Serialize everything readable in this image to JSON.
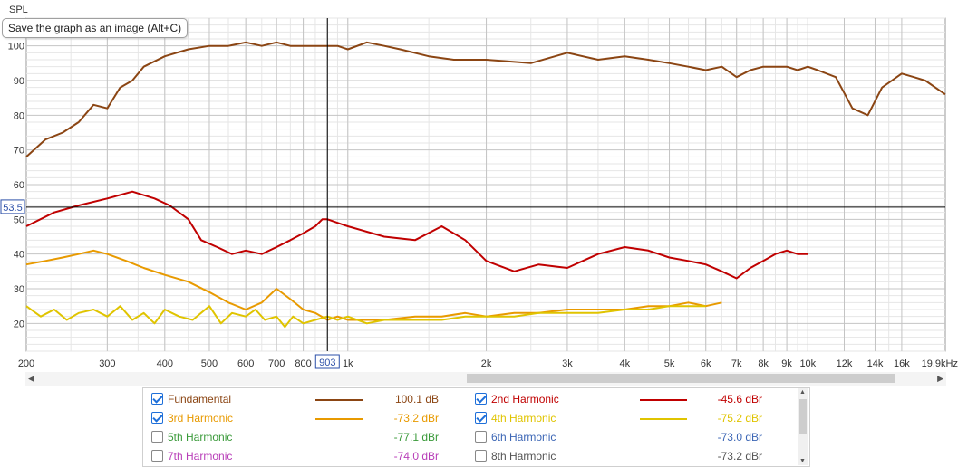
{
  "tooltip": "Save the graph as an image (Alt+C)",
  "chart_data": {
    "type": "line",
    "ylabel": "SPL",
    "xscale": "log",
    "xlim": [
      200,
      19900
    ],
    "ylim": [
      12,
      108
    ],
    "grid": true,
    "x_ticks": [
      {
        "v": 200,
        "label": "200"
      },
      {
        "v": 300,
        "label": "300"
      },
      {
        "v": 400,
        "label": "400"
      },
      {
        "v": 500,
        "label": "500"
      },
      {
        "v": 600,
        "label": "600"
      },
      {
        "v": 700,
        "label": "700"
      },
      {
        "v": 800,
        "label": "800"
      },
      {
        "v": 1000,
        "label": "1k"
      },
      {
        "v": 2000,
        "label": "2k"
      },
      {
        "v": 3000,
        "label": "3k"
      },
      {
        "v": 4000,
        "label": "4k"
      },
      {
        "v": 5000,
        "label": "5k"
      },
      {
        "v": 6000,
        "label": "6k"
      },
      {
        "v": 7000,
        "label": "7k"
      },
      {
        "v": 8000,
        "label": "8k"
      },
      {
        "v": 9000,
        "label": "9k"
      },
      {
        "v": 10000,
        "label": "10k"
      },
      {
        "v": 12000,
        "label": "12k"
      },
      {
        "v": 14000,
        "label": "14k"
      },
      {
        "v": 16000,
        "label": "16k"
      },
      {
        "v": 19900,
        "label": "19.9kHz"
      }
    ],
    "y_ticks": [
      20,
      30,
      40,
      50,
      60,
      70,
      80,
      90,
      100
    ],
    "cursor": {
      "x": 903,
      "y": 53.5,
      "x_label": "903",
      "y_label": "53.5"
    },
    "series": [
      {
        "name": "Fundamental",
        "color": "#8b4513",
        "x": [
          200,
          220,
          240,
          260,
          280,
          300,
          320,
          340,
          360,
          400,
          450,
          500,
          550,
          600,
          650,
          700,
          750,
          800,
          850,
          903,
          950,
          1000,
          1100,
          1200,
          1300,
          1500,
          1700,
          2000,
          2500,
          3000,
          3500,
          4000,
          4500,
          5000,
          5500,
          6000,
          6500,
          7000,
          7500,
          8000,
          9000,
          9500,
          10000,
          10500,
          11500,
          12500,
          13500,
          14500,
          16000,
          17000,
          18000,
          19900
        ],
        "y": [
          68,
          73,
          75,
          78,
          83,
          82,
          88,
          90,
          94,
          97,
          99,
          100,
          100,
          101,
          100,
          101,
          100,
          100,
          100,
          100,
          100,
          99,
          101,
          100,
          99,
          97,
          96,
          96,
          95,
          98,
          96,
          97,
          96,
          95,
          94,
          93,
          94,
          91,
          93,
          94,
          94,
          93,
          94,
          93,
          91,
          82,
          80,
          88,
          92,
          91,
          90,
          86
        ]
      },
      {
        "name": "2nd Harmonic",
        "color": "#c00000",
        "x": [
          200,
          230,
          260,
          300,
          340,
          380,
          410,
          450,
          480,
          520,
          560,
          600,
          650,
          700,
          750,
          800,
          850,
          880,
          903,
          950,
          1000,
          1200,
          1400,
          1600,
          1800,
          2000,
          2300,
          2600,
          3000,
          3500,
          4000,
          4500,
          5000,
          5500,
          6000,
          6500,
          7000,
          7500,
          8000,
          8500,
          9000,
          9500,
          10000
        ],
        "y": [
          48,
          52,
          54,
          56,
          58,
          56,
          54,
          50,
          44,
          42,
          40,
          41,
          40,
          42,
          44,
          46,
          48,
          50,
          50,
          49,
          48,
          45,
          44,
          48,
          44,
          38,
          35,
          37,
          36,
          40,
          42,
          41,
          39,
          38,
          37,
          35,
          33,
          36,
          38,
          40,
          41,
          40,
          40
        ]
      },
      {
        "name": "3rd Harmonic",
        "color": "#e89a00",
        "x": [
          200,
          220,
          240,
          260,
          280,
          300,
          330,
          360,
          400,
          450,
          500,
          550,
          600,
          650,
          700,
          750,
          800,
          850,
          903,
          950,
          1000,
          1100,
          1200,
          1400,
          1600,
          1800,
          2000,
          2300,
          2600,
          3000,
          3500,
          4000,
          4500,
          5000,
          5500,
          6000,
          6500
        ],
        "y": [
          37,
          38,
          39,
          40,
          41,
          40,
          38,
          36,
          34,
          32,
          29,
          26,
          24,
          26,
          30,
          27,
          24,
          23,
          21,
          22,
          21,
          21,
          21,
          22,
          22,
          23,
          22,
          23,
          23,
          24,
          24,
          24,
          25,
          25,
          26,
          25,
          26
        ]
      },
      {
        "name": "4th Harmonic",
        "color": "#e0c400",
        "x": [
          200,
          215,
          230,
          245,
          260,
          280,
          300,
          320,
          340,
          360,
          380,
          400,
          430,
          460,
          500,
          530,
          560,
          600,
          630,
          660,
          700,
          730,
          760,
          800,
          850,
          903,
          950,
          1000,
          1100,
          1200,
          1400,
          1600,
          1800,
          2000,
          2300,
          2600,
          3000,
          3500,
          4000,
          4500,
          5000,
          5500,
          6000
        ],
        "y": [
          25,
          22,
          24,
          21,
          23,
          24,
          22,
          25,
          21,
          23,
          20,
          24,
          22,
          21,
          25,
          20,
          23,
          22,
          24,
          21,
          22,
          19,
          22,
          20,
          21,
          22,
          21,
          22,
          20,
          21,
          21,
          21,
          22,
          22,
          22,
          23,
          23,
          23,
          24,
          24,
          25,
          25,
          25
        ]
      }
    ]
  },
  "legend": {
    "rows": [
      [
        {
          "label": "Fundamental",
          "color": "#8b4513",
          "checked": true,
          "value": "100.1 dB"
        },
        {
          "label": "2nd Harmonic",
          "color": "#c00000",
          "checked": true,
          "value": "-45.6 dBr"
        }
      ],
      [
        {
          "label": "3rd Harmonic",
          "color": "#e89a00",
          "checked": true,
          "value": "-73.2 dBr"
        },
        {
          "label": "4th Harmonic",
          "color": "#e0c400",
          "checked": true,
          "value": "-75.2 dBr"
        }
      ],
      [
        {
          "label": "5th Harmonic",
          "color": "#3a9a3a",
          "checked": false,
          "value": "-77.1 dBr"
        },
        {
          "label": "6th Harmonic",
          "color": "#3c66b5",
          "checked": false,
          "value": "-73.0 dBr"
        }
      ],
      [
        {
          "label": "7th Harmonic",
          "color": "#b83db8",
          "checked": false,
          "value": "-74.0 dBr"
        },
        {
          "label": "8th Harmonic",
          "color": "#555555",
          "checked": false,
          "value": "-73.2 dBr"
        }
      ]
    ]
  }
}
